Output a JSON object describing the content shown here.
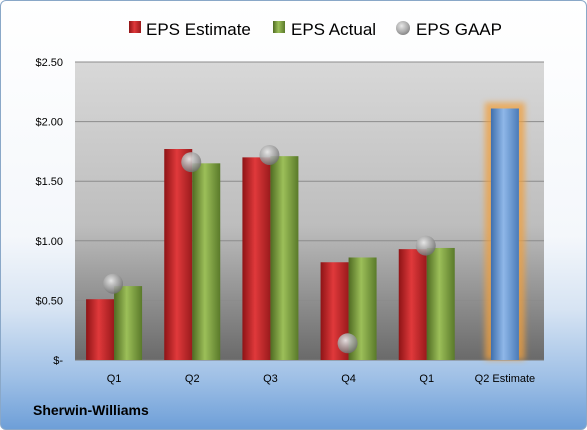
{
  "company": "Sherwin-Williams",
  "chart_data": {
    "type": "bar",
    "categories": [
      "Q1",
      "Q2",
      "Q3",
      "Q4",
      "Q1",
      "Q2 Estimate"
    ],
    "series": [
      {
        "name": "EPS Estimate",
        "values": [
          0.51,
          1.77,
          1.7,
          0.82,
          0.93,
          null
        ],
        "color": "#c0282a"
      },
      {
        "name": "EPS Actual",
        "values": [
          0.62,
          1.65,
          1.71,
          0.86,
          0.94,
          null
        ],
        "color": "#7a9a3c"
      },
      {
        "name": "EPS GAAP",
        "values": [
          0.64,
          1.66,
          1.72,
          0.14,
          0.96,
          null
        ],
        "color": "#a6a6a6"
      }
    ],
    "highlight": {
      "category": "Q2 Estimate",
      "value": 2.11,
      "color": "#6f9fd8",
      "glow": "#f0a040"
    },
    "ylim": [
      0,
      2.5
    ],
    "yticks": [
      0,
      0.5,
      1.0,
      1.5,
      2.0,
      2.5
    ],
    "ytick_labels": [
      "$-",
      "$0.50",
      "$1.00",
      "$1.50",
      "$2.00",
      "$2.50"
    ],
    "grid": true,
    "legend_position": "top"
  }
}
